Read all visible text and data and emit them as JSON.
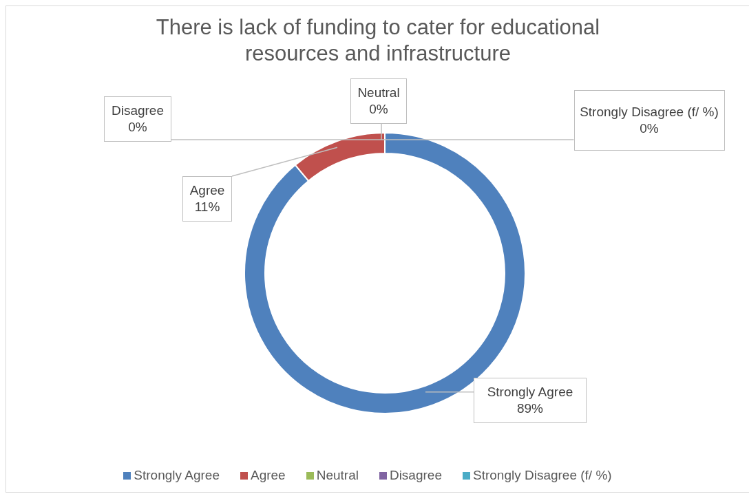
{
  "chart_data": {
    "type": "donut",
    "title": "There is lack of funding to cater for educational resources and infrastructure",
    "categories": [
      "Strongly Agree",
      "Agree",
      "Neutral",
      "Disagree",
      "Strongly Disagree (f/ %)"
    ],
    "values": [
      89,
      11,
      0,
      0,
      0
    ],
    "value_labels": [
      "89%",
      "11%",
      "0%",
      "0%",
      "0%"
    ],
    "colors": [
      "#4f81bd",
      "#c0504d",
      "#9bbb59",
      "#8064a2",
      "#4bacc6"
    ],
    "legend": "bottom"
  }
}
